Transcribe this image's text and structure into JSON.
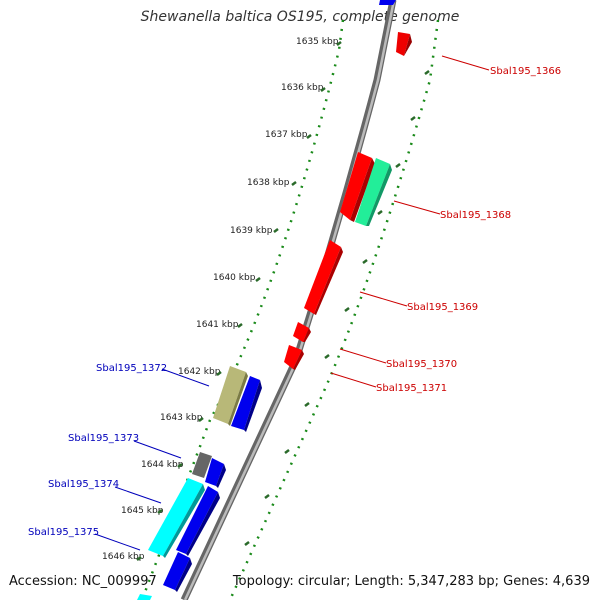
{
  "title": "Shewanella baltica OS195, complete genome",
  "footer": {
    "accession": "Accession: NC_009997",
    "topology": "Topology: circular; Length: 5,347,283 bp; Genes: 4,639"
  },
  "ruler": {
    "labels": [
      "1635 kbp",
      "1636 kbp",
      "1637 kbp",
      "1638 kbp",
      "1639 kbp",
      "1640 kbp",
      "1641 kbp",
      "1642 kbp",
      "1643 kbp",
      "1644 kbp",
      "1645 kbp",
      "1646 kbp"
    ]
  },
  "gene_labels": {
    "forward": [
      "Sbal195_1366",
      "Sbal195_1368",
      "Sbal195_1369",
      "Sbal195_1370",
      "Sbal195_1371"
    ],
    "reverse": [
      "Sbal195_1372",
      "Sbal195_1373",
      "Sbal195_1374",
      "Sbal195_1375"
    ]
  },
  "colors": {
    "forward_label": "#cc0000",
    "reverse_label": "#0000bb",
    "backbone": "#888888",
    "tick": "#228822",
    "gene_red": "#ff0000",
    "gene_green": "#22ee99",
    "gene_blue": "#0000ee",
    "gene_olive": "#b8b878",
    "gene_cyan": "#00ffff",
    "gene_gray": "#666666"
  }
}
